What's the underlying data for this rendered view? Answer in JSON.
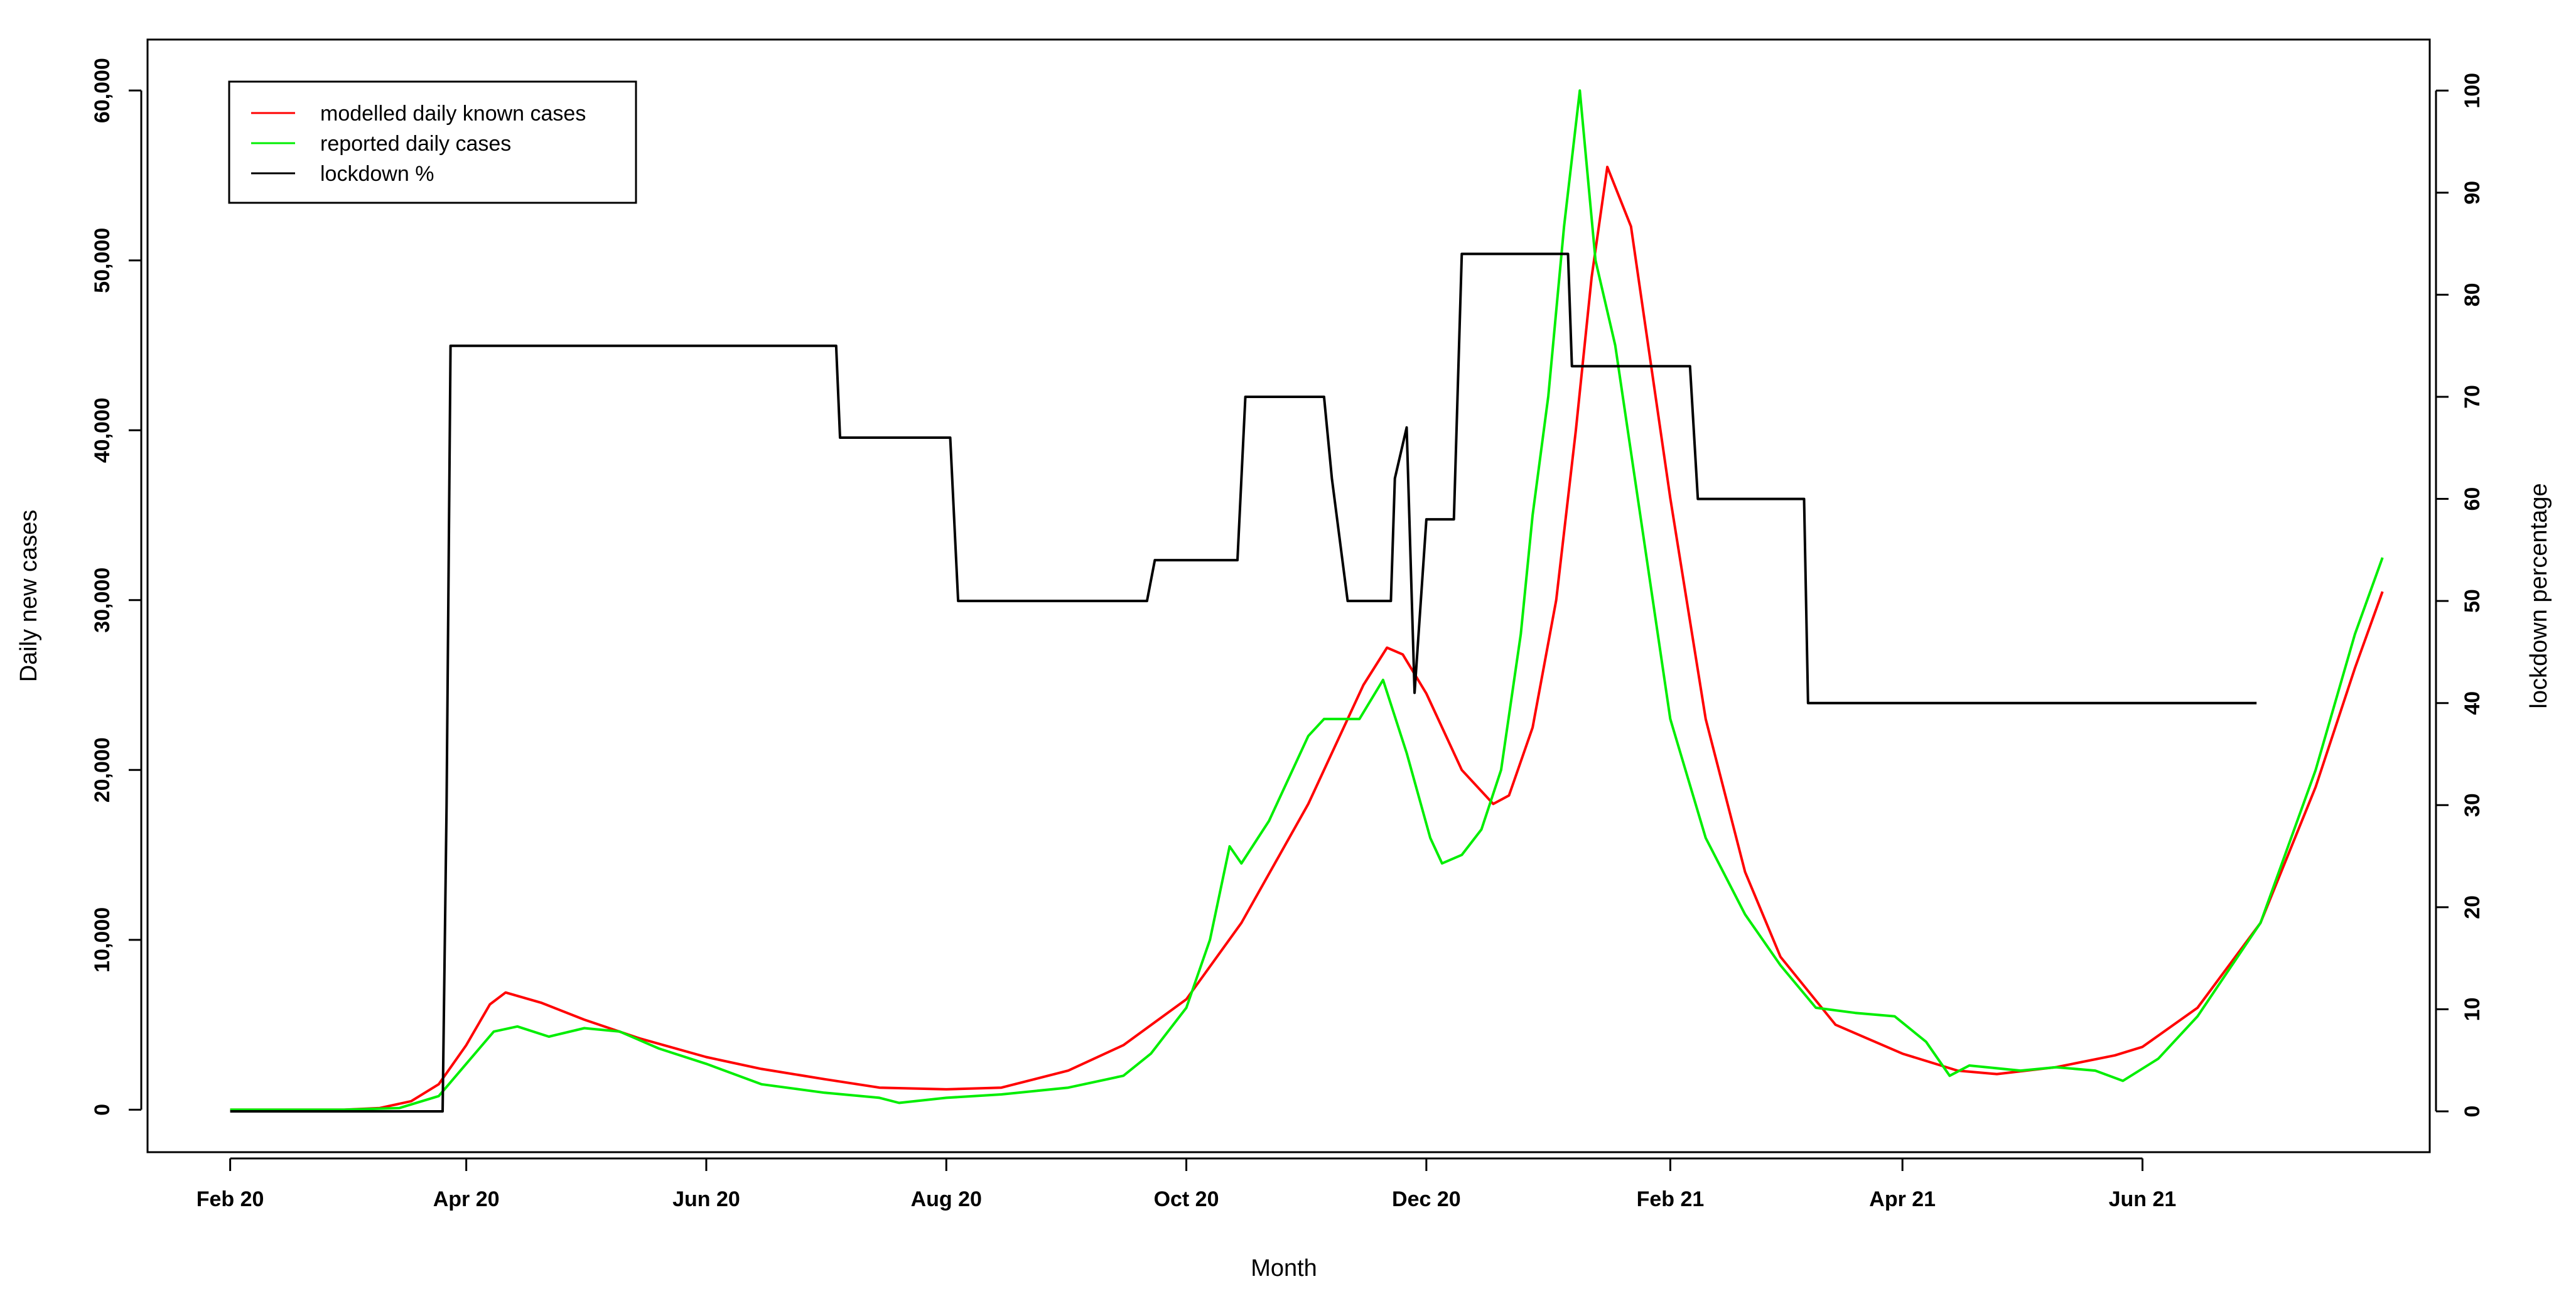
{
  "chart_data": {
    "type": "line",
    "title": "",
    "xlabel": "Month",
    "ylabel": "Daily new cases",
    "y2label": "lockdown percentage",
    "x_ticks": [
      "2020-02-01",
      "2020-04-01",
      "2020-06-01",
      "2020-08-01",
      "2020-10-01",
      "2020-12-01",
      "2021-02-01",
      "2021-04-01",
      "2021-06-01"
    ],
    "x_tick_labels": [
      "Feb 20",
      "Apr 20",
      "Jun 20",
      "Aug 20",
      "Oct 20",
      "Dec 20",
      "Feb 21",
      "Apr 21",
      "Jun 21"
    ],
    "xlim": [
      "2020-01-11",
      "2021-08-13"
    ],
    "ylim": [
      -2500,
      63000
    ],
    "y_ticks": [
      0,
      10000,
      20000,
      30000,
      40000,
      50000,
      60000
    ],
    "y_tick_labels": [
      "0",
      "10,000",
      "20,000",
      "30,000",
      "40,000",
      "50,000",
      "60,000"
    ],
    "y2lim": [
      -4,
      105
    ],
    "y2_ticks": [
      0,
      10,
      20,
      30,
      40,
      50,
      60,
      70,
      80,
      90,
      100
    ],
    "y2_tick_labels": [
      "0",
      "10",
      "20",
      "30",
      "40",
      "50",
      "60",
      "70",
      "80",
      "90",
      "100"
    ],
    "grid": false,
    "legend_position": "top-left",
    "series": [
      {
        "name": "modelled daily known cases",
        "axis": "left",
        "color": "#ff0000",
        "points": [
          [
            "2020-02-01",
            0
          ],
          [
            "2020-03-01",
            0
          ],
          [
            "2020-03-10",
            100
          ],
          [
            "2020-03-18",
            500
          ],
          [
            "2020-03-25",
            1500
          ],
          [
            "2020-04-01",
            3800
          ],
          [
            "2020-04-07",
            6200
          ],
          [
            "2020-04-11",
            6900
          ],
          [
            "2020-04-20",
            6300
          ],
          [
            "2020-05-01",
            5300
          ],
          [
            "2020-05-15",
            4200
          ],
          [
            "2020-06-01",
            3100
          ],
          [
            "2020-06-15",
            2400
          ],
          [
            "2020-07-01",
            1800
          ],
          [
            "2020-07-15",
            1300
          ],
          [
            "2020-08-01",
            1200
          ],
          [
            "2020-08-15",
            1300
          ],
          [
            "2020-09-01",
            2300
          ],
          [
            "2020-09-15",
            3800
          ],
          [
            "2020-10-01",
            6500
          ],
          [
            "2020-10-15",
            11000
          ],
          [
            "2020-11-01",
            18000
          ],
          [
            "2020-11-15",
            25000
          ],
          [
            "2020-11-21",
            27200
          ],
          [
            "2020-11-25",
            26800
          ],
          [
            "2020-12-01",
            24500
          ],
          [
            "2020-12-10",
            20000
          ],
          [
            "2020-12-18",
            18000
          ],
          [
            "2020-12-22",
            18500
          ],
          [
            "2020-12-28",
            22500
          ],
          [
            "2021-01-03",
            30000
          ],
          [
            "2021-01-08",
            40000
          ],
          [
            "2021-01-12",
            49000
          ],
          [
            "2021-01-16",
            55500
          ],
          [
            "2021-01-22",
            52000
          ],
          [
            "2021-02-01",
            36000
          ],
          [
            "2021-02-10",
            23000
          ],
          [
            "2021-02-20",
            14000
          ],
          [
            "2021-03-01",
            9000
          ],
          [
            "2021-03-15",
            5000
          ],
          [
            "2021-04-01",
            3300
          ],
          [
            "2021-04-15",
            2300
          ],
          [
            "2021-04-25",
            2100
          ],
          [
            "2021-05-10",
            2500
          ],
          [
            "2021-05-25",
            3200
          ],
          [
            "2021-06-01",
            3700
          ],
          [
            "2021-06-15",
            6000
          ],
          [
            "2021-07-01",
            11000
          ],
          [
            "2021-07-15",
            19000
          ],
          [
            "2021-07-25",
            26000
          ],
          [
            "2021-08-01",
            30500
          ]
        ]
      },
      {
        "name": "reported daily cases",
        "axis": "left",
        "color": "#00ee00",
        "points": [
          [
            "2020-02-01",
            0
          ],
          [
            "2020-03-01",
            0
          ],
          [
            "2020-03-15",
            100
          ],
          [
            "2020-03-25",
            800
          ],
          [
            "2020-04-01",
            2700
          ],
          [
            "2020-04-08",
            4600
          ],
          [
            "2020-04-14",
            4900
          ],
          [
            "2020-04-22",
            4300
          ],
          [
            "2020-05-01",
            4800
          ],
          [
            "2020-05-10",
            4600
          ],
          [
            "2020-05-20",
            3600
          ],
          [
            "2020-06-01",
            2700
          ],
          [
            "2020-06-15",
            1500
          ],
          [
            "2020-07-01",
            1000
          ],
          [
            "2020-07-15",
            700
          ],
          [
            "2020-07-20",
            400
          ],
          [
            "2020-08-01",
            700
          ],
          [
            "2020-08-15",
            900
          ],
          [
            "2020-09-01",
            1300
          ],
          [
            "2020-09-15",
            2000
          ],
          [
            "2020-09-22",
            3300
          ],
          [
            "2020-10-01",
            6000
          ],
          [
            "2020-10-07",
            10000
          ],
          [
            "2020-10-12",
            15500
          ],
          [
            "2020-10-15",
            14500
          ],
          [
            "2020-10-22",
            17000
          ],
          [
            "2020-11-01",
            22000
          ],
          [
            "2020-11-05",
            23000
          ],
          [
            "2020-11-14",
            23000
          ],
          [
            "2020-11-20",
            25300
          ],
          [
            "2020-11-26",
            21000
          ],
          [
            "2020-12-02",
            16000
          ],
          [
            "2020-12-05",
            14500
          ],
          [
            "2020-12-10",
            15000
          ],
          [
            "2020-12-15",
            16500
          ],
          [
            "2020-12-20",
            20000
          ],
          [
            "2020-12-25",
            28000
          ],
          [
            "2020-12-28",
            35000
          ],
          [
            "2021-01-01",
            42000
          ],
          [
            "2021-01-05",
            52000
          ],
          [
            "2021-01-09",
            60000
          ],
          [
            "2021-01-13",
            50000
          ],
          [
            "2021-01-18",
            45000
          ],
          [
            "2021-01-25",
            34000
          ],
          [
            "2021-02-01",
            23000
          ],
          [
            "2021-02-10",
            16000
          ],
          [
            "2021-02-20",
            11500
          ],
          [
            "2021-03-01",
            8500
          ],
          [
            "2021-03-10",
            6000
          ],
          [
            "2021-03-20",
            5700
          ],
          [
            "2021-03-30",
            5500
          ],
          [
            "2021-04-07",
            4000
          ],
          [
            "2021-04-13",
            2000
          ],
          [
            "2021-04-18",
            2600
          ],
          [
            "2021-05-01",
            2300
          ],
          [
            "2021-05-10",
            2500
          ],
          [
            "2021-05-20",
            2300
          ],
          [
            "2021-05-27",
            1700
          ],
          [
            "2021-06-05",
            3000
          ],
          [
            "2021-06-15",
            5500
          ],
          [
            "2021-07-01",
            11000
          ],
          [
            "2021-07-15",
            20000
          ],
          [
            "2021-07-25",
            28000
          ],
          [
            "2021-08-01",
            32500
          ]
        ]
      },
      {
        "name": "lockdown %",
        "axis": "right",
        "color": "#000000",
        "step": true,
        "points": [
          [
            "2020-02-01",
            0
          ],
          [
            "2020-03-26",
            0
          ],
          [
            "2020-03-27",
            30
          ],
          [
            "2020-03-28",
            75
          ],
          [
            "2020-07-04",
            75
          ],
          [
            "2020-07-05",
            66
          ],
          [
            "2020-07-10",
            66
          ],
          [
            "2020-08-02",
            66
          ],
          [
            "2020-08-04",
            50
          ],
          [
            "2020-09-21",
            50
          ],
          [
            "2020-09-23",
            54
          ],
          [
            "2020-10-01",
            54
          ],
          [
            "2020-10-14",
            54
          ],
          [
            "2020-10-16",
            70
          ],
          [
            "2020-11-05",
            70
          ],
          [
            "2020-11-07",
            62
          ],
          [
            "2020-11-11",
            50
          ],
          [
            "2020-11-22",
            50
          ],
          [
            "2020-11-23",
            62
          ],
          [
            "2020-11-26",
            67
          ],
          [
            "2020-11-28",
            41
          ],
          [
            "2020-12-01",
            58
          ],
          [
            "2020-12-08",
            58
          ],
          [
            "2020-12-10",
            84
          ],
          [
            "2021-01-06",
            84
          ],
          [
            "2021-01-07",
            73
          ],
          [
            "2021-02-06",
            73
          ],
          [
            "2021-02-08",
            60
          ],
          [
            "2021-03-07",
            60
          ],
          [
            "2021-03-08",
            40
          ],
          [
            "2021-06-30",
            40
          ]
        ]
      }
    ]
  }
}
